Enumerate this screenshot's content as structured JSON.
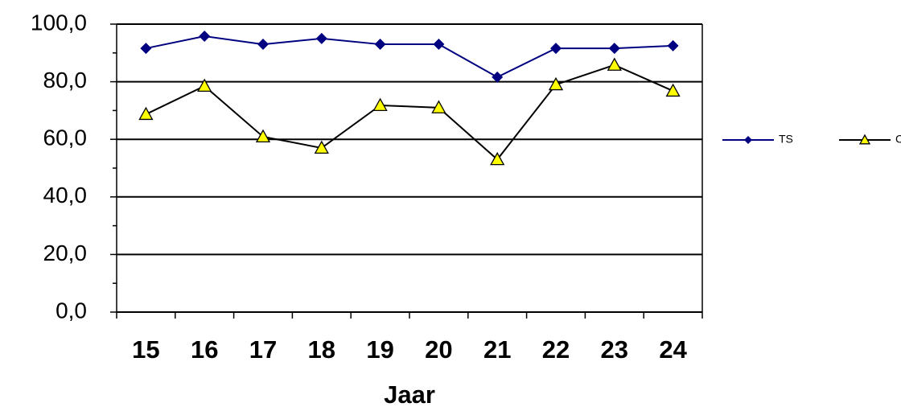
{
  "chart_data": {
    "type": "line",
    "x_label": "Jaar",
    "categories": [
      "15",
      "16",
      "17",
      "18",
      "19",
      "20",
      "21",
      "22",
      "23",
      "24"
    ],
    "series": [
      {
        "name": "TS",
        "color": "#000080",
        "marker": "diamond",
        "values": [
          91.6,
          95.8,
          93.0,
          95.0,
          93.0,
          93.0,
          81.6,
          91.6,
          91.6,
          92.5
        ]
      },
      {
        "name": "CD",
        "color": "#000000",
        "marker": "triangle",
        "marker_color": "#ffff00",
        "values": [
          68.7,
          78.5,
          60.9,
          57.0,
          71.8,
          71.0,
          53.0,
          79.0,
          85.8,
          76.8
        ]
      }
    ],
    "ylim": [
      0,
      100
    ],
    "yticks": [
      {
        "value": 0,
        "label": "0,0"
      },
      {
        "value": 20,
        "label": "20,0"
      },
      {
        "value": 40,
        "label": "40,0"
      },
      {
        "value": 60,
        "label": "60,0"
      },
      {
        "value": 80,
        "label": "80,0"
      },
      {
        "value": 100,
        "label": "100,0"
      }
    ],
    "grid": true,
    "legend": "right"
  }
}
